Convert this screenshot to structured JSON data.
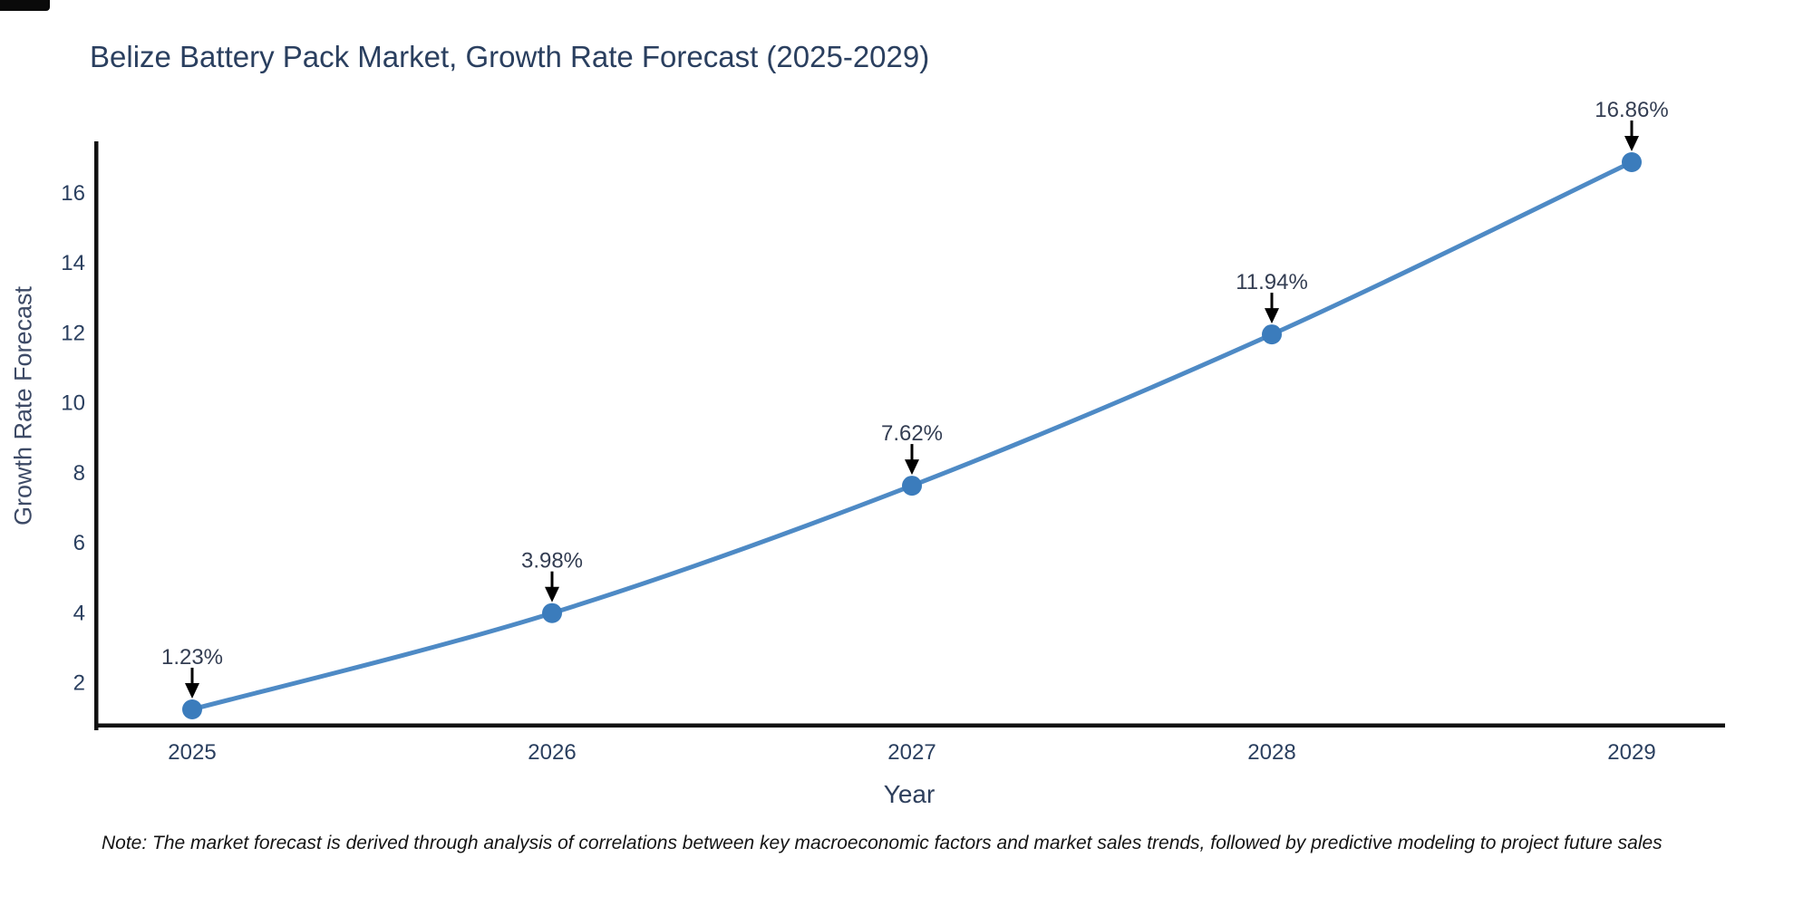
{
  "title": "Belize Battery Pack Market, Growth Rate Forecast (2025-2029)",
  "note": "Note: The market forecast is derived through analysis of correlations between key macroeconomic factors and market sales trends, followed by predictive modeling to project future sales",
  "chart_data": {
    "type": "line",
    "title": "Belize Battery Pack Market, Growth Rate Forecast (2025-2029)",
    "xlabel": "Year",
    "ylabel": "Growth Rate Forecast",
    "categories": [
      "2025",
      "2026",
      "2027",
      "2028",
      "2029"
    ],
    "series": [
      {
        "name": "Growth Rate Forecast",
        "values": [
          1.23,
          3.98,
          7.62,
          11.94,
          16.86
        ],
        "point_labels": [
          "1.23%",
          "3.98%",
          "7.62%",
          "11.94%",
          "16.86%"
        ]
      }
    ],
    "yticks": [
      2,
      4,
      6,
      8,
      10,
      12,
      14,
      16
    ],
    "ylim": [
      0.8,
      17.4
    ],
    "grid": false,
    "legend_position": "none",
    "annotation_style": "value label with downward arrow to each marker",
    "colors": {
      "line": "#4e8ac5",
      "marker": "#3b7cbc",
      "axis_line": "#111111",
      "tick_text": "#2a3f5f",
      "annotation_text": "#333d52",
      "arrow": "#000000"
    }
  }
}
